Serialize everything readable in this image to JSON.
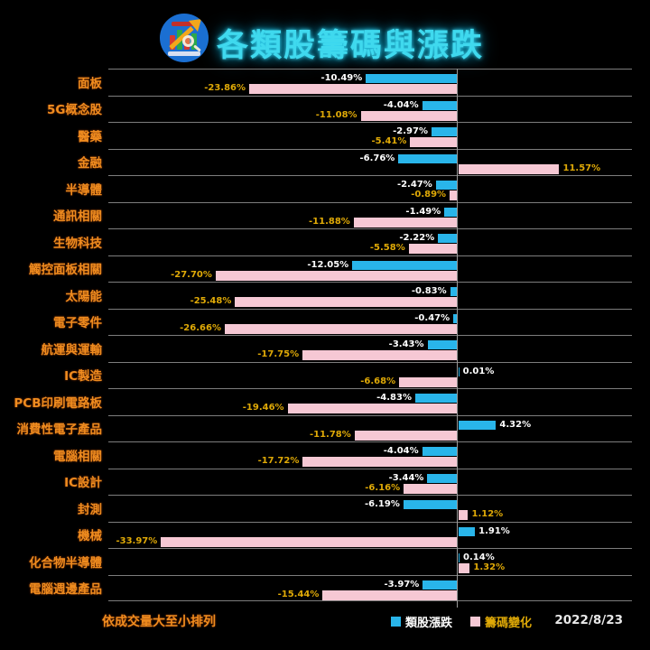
{
  "header": {
    "title": "各類股籌碼與漲跌"
  },
  "footer": {
    "sort_note": "依成交量大至小排列",
    "date": "2022/8/23"
  },
  "legend": {
    "items": [
      {
        "label": "類股漲跌",
        "swatch": "#29b5ea",
        "label_color": "#ffffff"
      },
      {
        "label": "籌碼變化",
        "swatch": "#f6c8d4",
        "label_color": "#dfa907"
      }
    ]
  },
  "colors": {
    "background": "#000000",
    "title": "#3fd9ee",
    "category_label": "#ef8c1f",
    "value_label_blue": "#ffffff",
    "value_label_pink": "#dfa907",
    "grid": "#7d7d7d",
    "axis": "#9a9a9a"
  },
  "chart_data": {
    "type": "bar",
    "orientation": "horizontal",
    "title": "各類股籌碼與漲跌",
    "categories": [
      "面板",
      "5G概念股",
      "醫藥",
      "金融",
      "半導體",
      "通訊相關",
      "生物科技",
      "觸控面板相關",
      "太陽能",
      "電子零件",
      "航運與運輸",
      "IC製造",
      "PCB印刷電路板",
      "消費性電子產品",
      "電腦相關",
      "IC設計",
      "封測",
      "機械",
      "化合物半導體",
      "電腦週邊產品"
    ],
    "series": [
      {
        "name": "類股漲跌",
        "color": "#29b5ea",
        "values": [
          -10.49,
          -4.04,
          -2.97,
          -6.76,
          -2.47,
          -1.49,
          -2.22,
          -12.05,
          -0.83,
          -0.47,
          -3.43,
          0.01,
          -4.83,
          4.32,
          -4.04,
          -3.44,
          -6.19,
          1.91,
          0.14,
          -3.97
        ]
      },
      {
        "name": "籌碼變化",
        "color": "#f6c8d4",
        "values": [
          -23.86,
          -11.08,
          -5.41,
          11.57,
          -0.89,
          -11.88,
          -5.58,
          -27.7,
          -25.48,
          -26.66,
          -17.75,
          -6.68,
          -19.46,
          -11.78,
          -17.72,
          -6.16,
          1.12,
          -33.97,
          1.32,
          -15.44
        ]
      }
    ],
    "xlim": [
      -40,
      20
    ],
    "value_suffix": "%",
    "grid": "row-separators-only",
    "legend_position": "bottom-right",
    "sort_note": "依成交量大至小排列",
    "date": "2022/8/23"
  }
}
